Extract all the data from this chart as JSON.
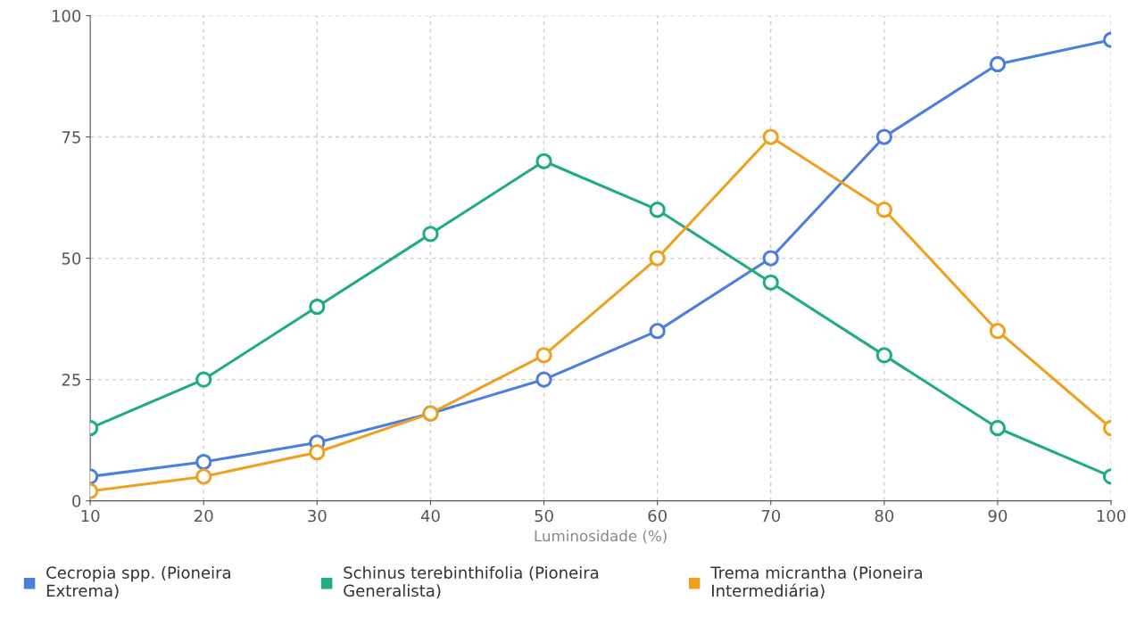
{
  "chart_data": {
    "type": "line",
    "xlabel": "Luminosidade (%)",
    "x": [
      10,
      20,
      30,
      40,
      50,
      60,
      70,
      80,
      90,
      100
    ],
    "xlim": [
      10,
      100
    ],
    "xticks": [
      10,
      20,
      30,
      40,
      50,
      60,
      70,
      80,
      90,
      100
    ],
    "ylim": [
      0,
      100
    ],
    "yticks": [
      0,
      25,
      50,
      75,
      100
    ],
    "grid": true,
    "marker": "circle",
    "line_style": "solid",
    "legend": "bottom",
    "series": [
      {
        "name": "Cecropia spp. (Pioneira Extrema)",
        "color": "#4a7fe0",
        "values": [
          5,
          8,
          12,
          18,
          25,
          35,
          50,
          75,
          90,
          95
        ]
      },
      {
        "name": "Schinus terebinthifolia (Pioneira Generalista)",
        "color": "#1fae7a",
        "values": [
          15,
          25,
          40,
          55,
          70,
          60,
          45,
          30,
          15,
          5
        ]
      },
      {
        "name": "Trema micrantha (Pioneira Intermediária)",
        "color": "#f0a020",
        "values": [
          2,
          5,
          10,
          18,
          30,
          50,
          75,
          60,
          35,
          15
        ]
      }
    ]
  }
}
